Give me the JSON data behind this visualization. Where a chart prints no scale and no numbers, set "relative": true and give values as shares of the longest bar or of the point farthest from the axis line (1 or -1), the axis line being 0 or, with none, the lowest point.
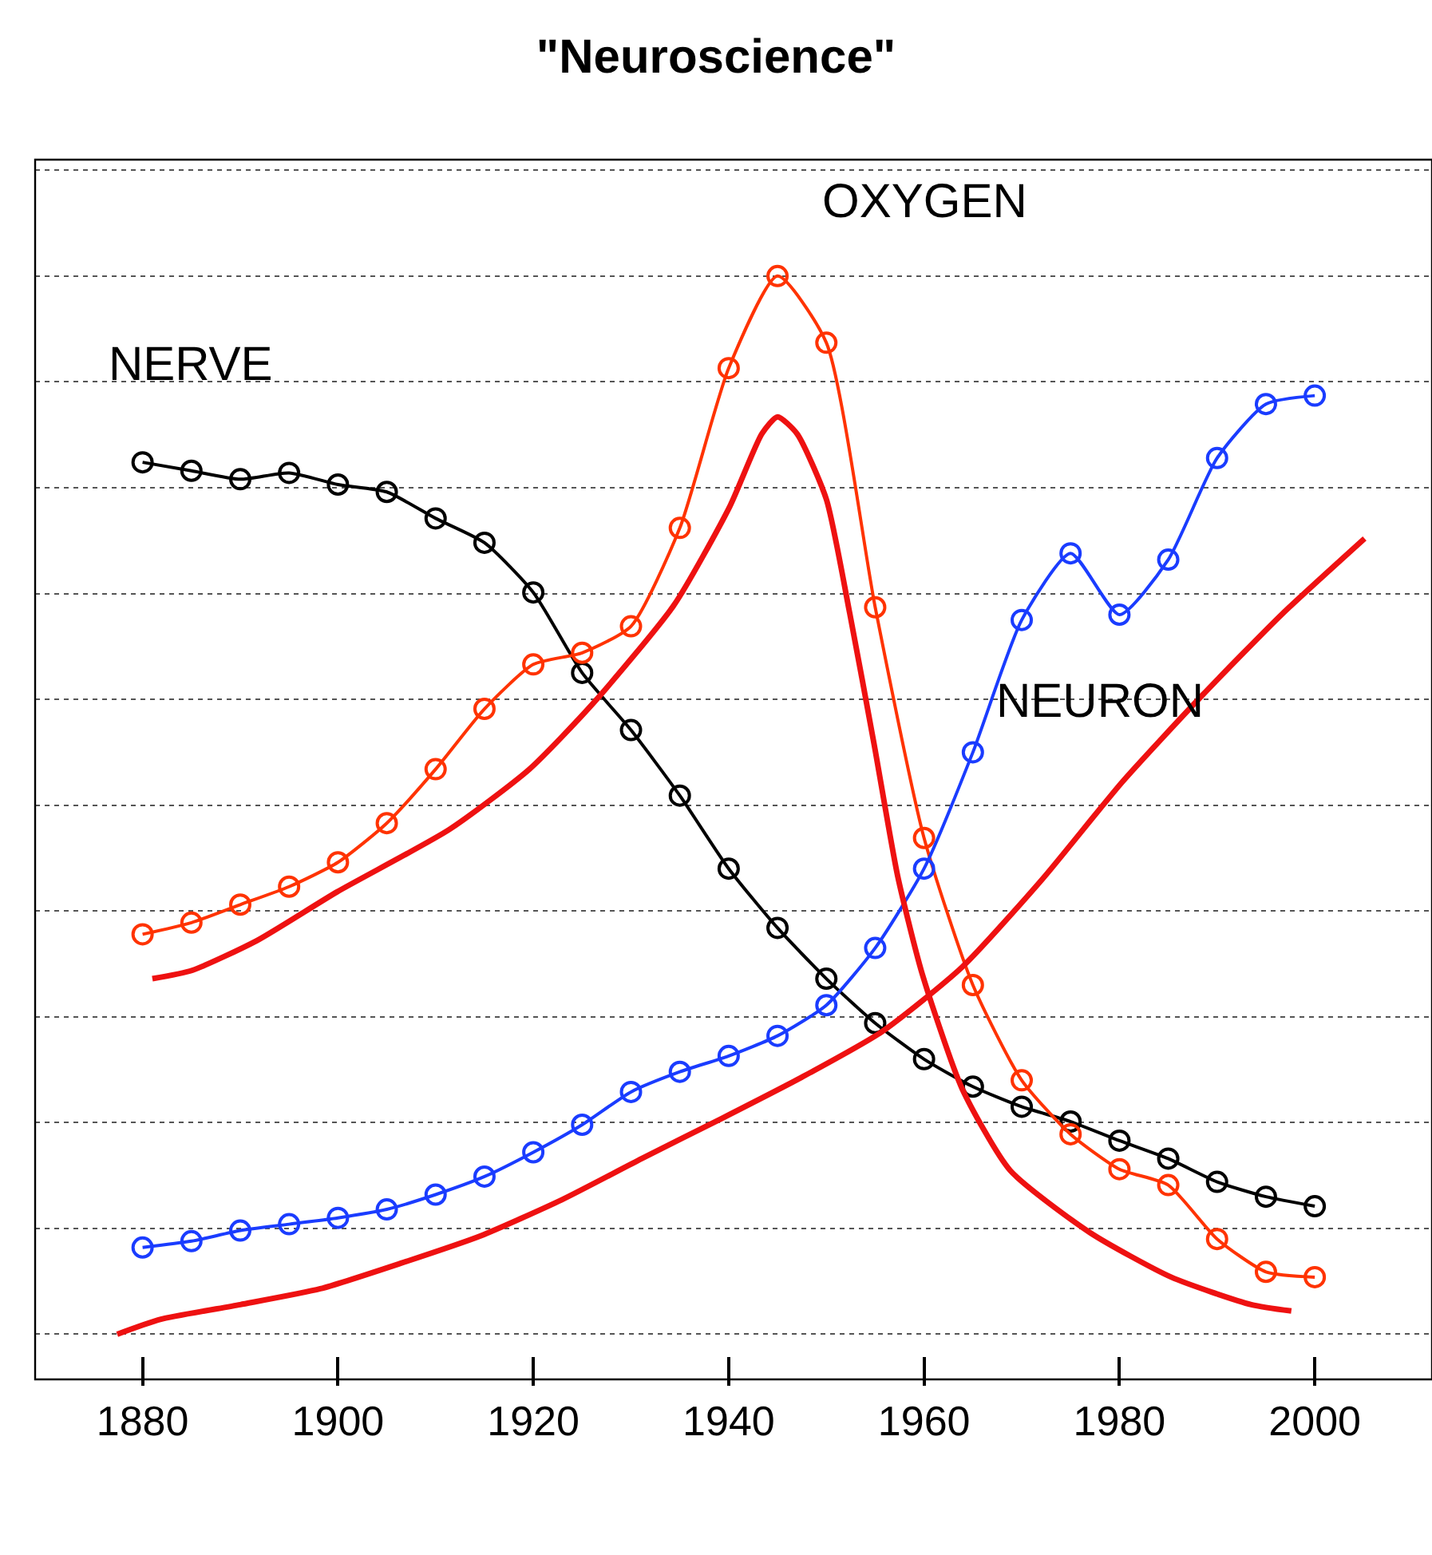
{
  "chart_data": {
    "type": "line",
    "title": "\"Neuroscience\"",
    "relative": true,
    "grid": "y",
    "legend": false,
    "line_style": "solid",
    "x": [
      1880,
      1885,
      1890,
      1895,
      1900,
      1905,
      1910,
      1915,
      1920,
      1925,
      1930,
      1935,
      1940,
      1945,
      1950,
      1955,
      1960,
      1965,
      1970,
      1975,
      1980,
      1985,
      1990,
      1995,
      2000
    ],
    "xlim": [
      1869,
      2012
    ],
    "xticks": [
      1880,
      1900,
      1920,
      1940,
      1960,
      1980,
      2000
    ],
    "tick_labels": "x",
    "series": [
      {
        "name": "NERVE",
        "color": "#000000",
        "marker": "circle",
        "values": [
          0.824,
          0.816,
          0.808,
          0.814,
          0.803,
          0.796,
          0.771,
          0.748,
          0.701,
          0.625,
          0.571,
          0.509,
          0.44,
          0.384,
          0.336,
          0.294,
          0.26,
          0.234,
          0.215,
          0.201,
          0.183,
          0.166,
          0.144,
          0.13,
          0.121
        ]
      },
      {
        "name": "OXYGEN",
        "color": "#ff3300",
        "marker": "circle",
        "values": [
          0.378,
          0.389,
          0.406,
          0.423,
          0.446,
          0.483,
          0.534,
          0.591,
          0.633,
          0.644,
          0.669,
          0.762,
          0.913,
          1,
          0.937,
          0.687,
          0.469,
          0.33,
          0.24,
          0.189,
          0.156,
          0.141,
          0.09,
          0.059,
          0.054
        ]
      },
      {
        "name": "NEURON",
        "color": "#1a3cff",
        "marker": "circle",
        "values": [
          0.082,
          0.088,
          0.098,
          0.104,
          0.11,
          0.118,
          0.132,
          0.149,
          0.172,
          0.198,
          0.229,
          0.248,
          0.263,
          0.282,
          0.311,
          0.365,
          0.44,
          0.55,
          0.675,
          0.738,
          0.68,
          0.732,
          0.828,
          0.879,
          0.887
        ]
      },
      {
        "color": "#ee1111",
        "marker": "none",
        "x": [
          1881,
          1885.1,
          1891.7,
          1899.9,
          1911.4,
          1919.6,
          1926.1,
          1934.4,
          1940.1,
          1943.4,
          1945,
          1947,
          1950,
          1952.4,
          1954.9,
          1957.3,
          1959.8,
          1963.9,
          1968.8,
          1977,
          1985.3,
          1993.5,
          1997.6
        ],
        "values": [
          0.336,
          0.344,
          0.372,
          0.418,
          0.477,
          0.534,
          0.596,
          0.689,
          0.782,
          0.851,
          0.867,
          0.851,
          0.789,
          0.681,
          0.557,
          0.433,
          0.341,
          0.232,
          0.155,
          0.096,
          0.054,
          0.028,
          0.022
        ]
      },
      {
        "color": "#ee1111",
        "marker": "none",
        "x": [
          1877.4,
          1881.8,
          1890,
          1898.2,
          1906.4,
          1914.6,
          1922.9,
          1931.1,
          1939.3,
          1947.5,
          1955.7,
          1963.9,
          1972.1,
          1980.3,
          1988.5,
          1996.7,
          2005.1
        ],
        "values": [
          0,
          0.014,
          0.028,
          0.043,
          0.067,
          0.093,
          0.127,
          0.166,
          0.204,
          0.243,
          0.286,
          0.347,
          0.43,
          0.522,
          0.604,
          0.681,
          0.752
        ]
      }
    ]
  }
}
